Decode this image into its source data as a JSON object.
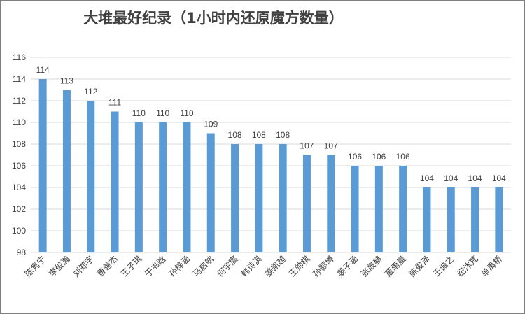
{
  "chart_data": {
    "type": "bar",
    "title": "大堆最好纪录（1小时内还原魔方数量）",
    "categories": [
      "陈隽宁",
      "李俊瀚",
      "刘郑宇",
      "曹善杰",
      "王子琪",
      "于书晗",
      "孙梓涵",
      "马启航",
      "何宇宸",
      "韩诗淇",
      "姜凯超",
      "王帅棋",
      "孙颢博",
      "晏子涵",
      "张晟赫",
      "董雨晨",
      "陈俊泽",
      "王诚之",
      "纪沐梵",
      "单禹桥"
    ],
    "values": [
      114,
      113,
      112,
      111,
      110,
      110,
      110,
      109,
      108,
      108,
      108,
      107,
      107,
      106,
      106,
      106,
      104,
      104,
      104,
      104
    ],
    "ylim": [
      98,
      116
    ],
    "yticks": [
      98,
      100,
      102,
      104,
      106,
      108,
      110,
      112,
      114,
      116
    ],
    "grid": true,
    "bar_color": "#5b9bd5"
  }
}
